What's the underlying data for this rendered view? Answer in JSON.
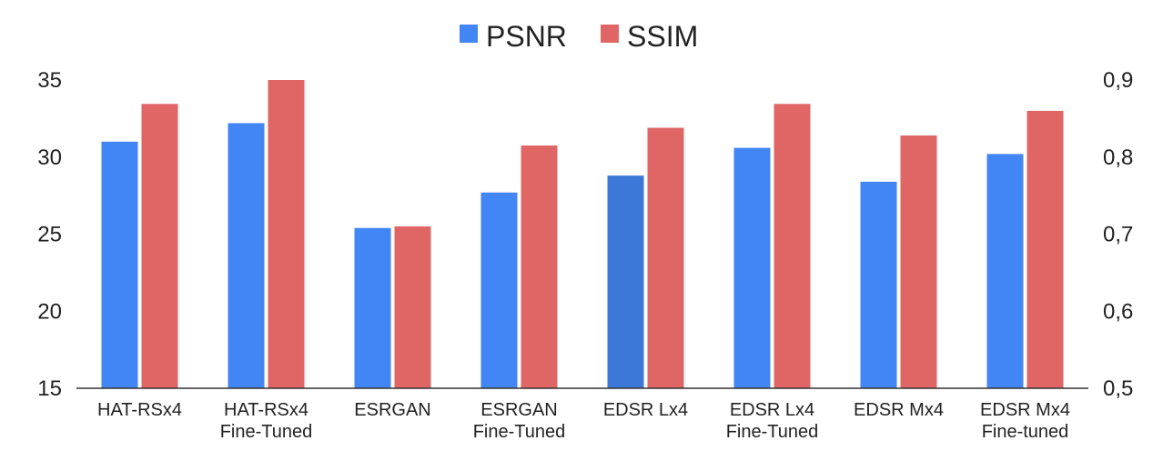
{
  "chart_data": {
    "type": "bar",
    "categories": [
      [
        "HAT-RSx4"
      ],
      [
        "HAT-RSx4",
        "Fine-Tuned"
      ],
      [
        "ESRGAN"
      ],
      [
        "ESRGAN",
        "Fine-Tuned"
      ],
      [
        "EDSR Lx4"
      ],
      [
        "EDSR Lx4",
        "Fine-Tuned"
      ],
      [
        "EDSR Mx4"
      ],
      [
        "EDSR Mx4",
        "Fine-tuned"
      ]
    ],
    "series": [
      {
        "name": "PSNR",
        "axis": "left",
        "color": "#4285f4",
        "values": [
          31.0,
          32.2,
          25.4,
          27.7,
          28.8,
          30.6,
          28.4,
          30.2
        ]
      },
      {
        "name": "SSIM",
        "axis": "right",
        "color": "#e06666",
        "values": [
          0.869,
          0.9,
          0.71,
          0.815,
          0.838,
          0.869,
          0.828,
          0.86
        ]
      }
    ],
    "highlight": {
      "series": 0,
      "index": 4,
      "color": "#3c78d8"
    },
    "y_left": {
      "ylim": [
        15,
        35
      ],
      "ticks": [
        "15",
        "20",
        "25",
        "30",
        "35"
      ],
      "tick_values": [
        15,
        20,
        25,
        30,
        35
      ]
    },
    "y_right": {
      "ylim": [
        0.5,
        0.9
      ],
      "ticks": [
        "0,5",
        "0,6",
        "0,7",
        "0,8",
        "0,9"
      ],
      "tick_values": [
        0.5,
        0.6,
        0.7,
        0.8,
        0.9
      ]
    },
    "grid": false,
    "legend": "top-center",
    "title": "",
    "xlabel": "",
    "ylabel": ""
  }
}
